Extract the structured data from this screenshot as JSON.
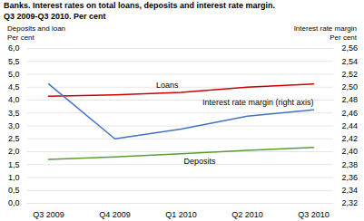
{
  "chart_data": {
    "type": "line",
    "title": "Banks. Interest rates on total loans, deposits and interest rate margin.",
    "subtitle": "Q3 2009-Q3 2010. Per cent",
    "categories": [
      "Q3 2009",
      "Q4 2009",
      "Q1 2010",
      "Q2 2010",
      "Q3 2010"
    ],
    "series": [
      {
        "name": "Loans",
        "color": "#cc0000",
        "values": [
          4.15,
          4.2,
          4.3,
          4.5,
          4.62
        ]
      },
      {
        "name": "Deposits",
        "color": "#5a9e2f",
        "values": [
          1.7,
          1.8,
          1.92,
          2.05,
          2.17
        ]
      },
      {
        "name": "Interest rate margin (right axis)",
        "color": "#4472c4",
        "values": [
          2.505,
          2.42,
          2.435,
          2.455,
          2.465
        ],
        "axis": "y2"
      }
    ],
    "ylabel": [
      "Deposits and loan",
      "Per cent"
    ],
    "y2label": [
      "Interest rate margin",
      "Per cent"
    ],
    "ylim": [
      0.0,
      6.0
    ],
    "yticks": [
      {
        "value": 0.0,
        "label": "0,0"
      },
      {
        "value": 0.5,
        "label": "0,5"
      },
      {
        "value": 1.0,
        "label": "1,0"
      },
      {
        "value": 1.5,
        "label": "1,5"
      },
      {
        "value": 2.0,
        "label": "2,0"
      },
      {
        "value": 2.5,
        "label": "2,5"
      },
      {
        "value": 3.0,
        "label": "3,0"
      },
      {
        "value": 3.5,
        "label": "3,5"
      },
      {
        "value": 4.0,
        "label": "4,0"
      },
      {
        "value": 4.5,
        "label": "4,5"
      },
      {
        "value": 5.0,
        "label": "5,0"
      },
      {
        "value": 5.5,
        "label": "5,5"
      },
      {
        "value": 6.0,
        "label": "6,0"
      }
    ],
    "y2lim": [
      2.32,
      2.56
    ],
    "y2ticks": [
      {
        "value": 2.32,
        "label": "2,32"
      },
      {
        "value": 2.34,
        "label": "2,34"
      },
      {
        "value": 2.36,
        "label": "2,36"
      },
      {
        "value": 2.38,
        "label": "2,38"
      },
      {
        "value": 2.4,
        "label": "2,40"
      },
      {
        "value": 2.42,
        "label": "2,42"
      },
      {
        "value": 2.44,
        "label": "2,44"
      },
      {
        "value": 2.46,
        "label": "2,46"
      },
      {
        "value": 2.48,
        "label": "2,48"
      },
      {
        "value": 2.5,
        "label": "2,50"
      },
      {
        "value": 2.52,
        "label": "2,52"
      },
      {
        "value": 2.54,
        "label": "2,54"
      },
      {
        "value": 2.56,
        "label": "2,56"
      }
    ],
    "grid": true
  }
}
